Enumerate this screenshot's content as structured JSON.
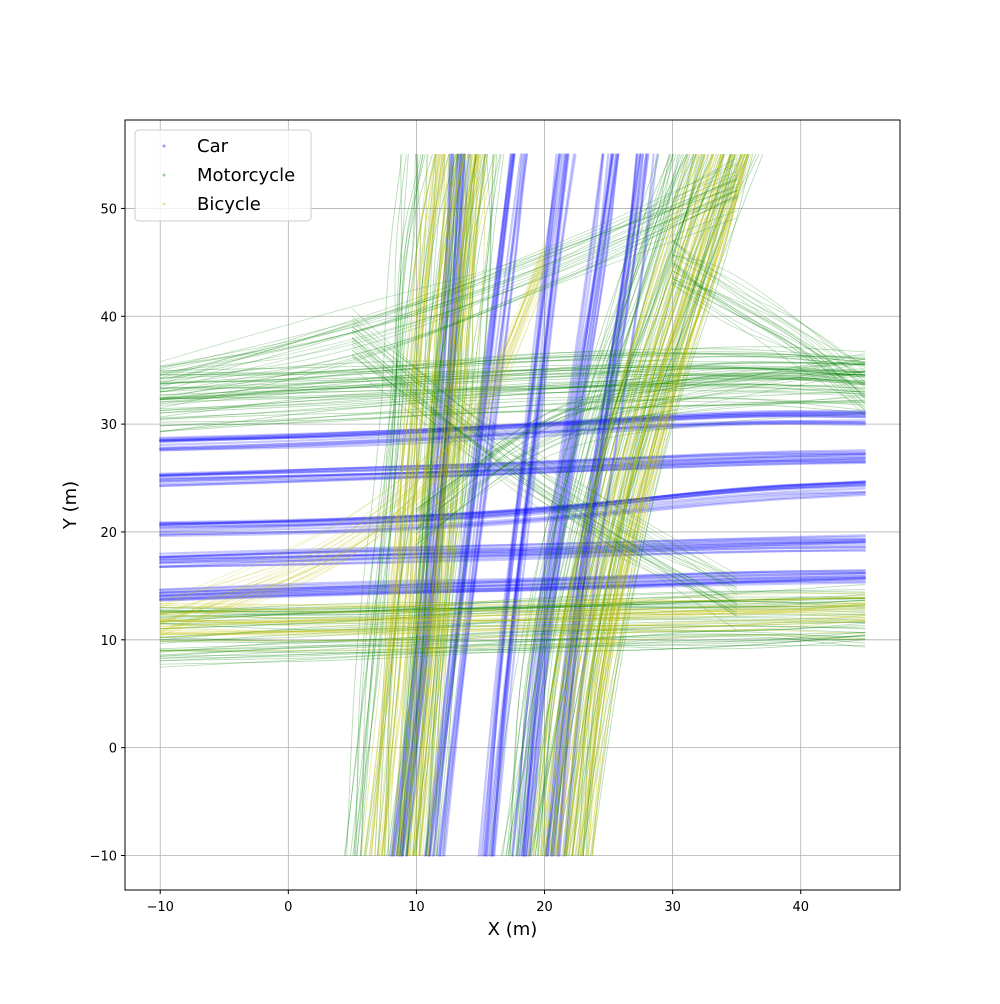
{
  "chart_data": {
    "type": "scatter",
    "title": "",
    "xlabel": "X (m)",
    "ylabel": "Y (m)",
    "xlim": [
      -12.75,
      47.75
    ],
    "ylim": [
      -13.2,
      58.2
    ],
    "xticks": [
      -10,
      0,
      10,
      20,
      30,
      40
    ],
    "yticks": [
      -10,
      0,
      10,
      20,
      30,
      40,
      50
    ],
    "x_tick_labels": [
      "−10",
      "0",
      "10",
      "20",
      "30",
      "40"
    ],
    "y_tick_labels": [
      "−10",
      "0",
      "10",
      "20",
      "30",
      "40",
      "50"
    ],
    "grid": true,
    "legend_position": "top-left",
    "series": [
      {
        "name": "Car",
        "color": "#0000ff",
        "lanes_vertical": [
          {
            "x": [
              8.5,
              10.5,
              12.0,
              12.8,
              13.2
            ],
            "y": [
              -10,
              10,
              30,
              45,
              55
            ]
          },
          {
            "x": [
              11.5,
              13.5,
              15.5,
              17.0,
              18.0
            ],
            "y": [
              -10,
              10,
              30,
              45,
              55
            ]
          },
          {
            "x": [
              15.5,
              17.0,
              19.0,
              20.5,
              21.5
            ],
            "y": [
              -10,
              10,
              30,
              45,
              55
            ]
          },
          {
            "x": [
              18.0,
              19.5,
              22.0,
              24.0,
              25.0
            ],
            "y": [
              -10,
              10,
              30,
              45,
              55
            ]
          },
          {
            "x": [
              21.0,
              22.5,
              25.0,
              27.0,
              28.0
            ],
            "y": [
              -10,
              10,
              30,
              45,
              55
            ]
          }
        ],
        "lanes_horizontal": [
          {
            "x": [
              -10,
              5,
              20,
              35,
              45
            ],
            "y": [
              28.0,
              28.5,
              29.5,
              30.5,
              30.5
            ]
          },
          {
            "x": [
              -10,
              5,
              20,
              35,
              45
            ],
            "y": [
              25.0,
              25.5,
              26.0,
              26.8,
              27.0
            ]
          },
          {
            "x": [
              -10,
              5,
              20,
              35,
              45
            ],
            "y": [
              20.2,
              20.5,
              21.5,
              23.5,
              24.0
            ]
          },
          {
            "x": [
              -10,
              5,
              20,
              35,
              45
            ],
            "y": [
              17.3,
              17.8,
              18.2,
              18.8,
              19.0
            ]
          },
          {
            "x": [
              -10,
              5,
              20,
              35,
              45
            ],
            "y": [
              14.2,
              14.8,
              15.2,
              15.8,
              16.0
            ]
          }
        ]
      },
      {
        "name": "Motorcycle",
        "color": "#008000",
        "lanes_vertical": [
          {
            "x": [
              8.0,
              9.5,
              11.0,
              12.0,
              13.0
            ],
            "y": [
              -10,
              10,
              30,
              45,
              55
            ]
          },
          {
            "x": [
              20.0,
              22.0,
              26.0,
              30.0,
              33.0
            ],
            "y": [
              -10,
              10,
              30,
              45,
              55
            ]
          }
        ],
        "lanes_horizontal": [
          {
            "x": [
              -10,
              5,
              20,
              35,
              45
            ],
            "y": [
              32.0,
              33.0,
              34.0,
              34.5,
              34.0
            ]
          },
          {
            "x": [
              -10,
              5,
              20,
              35,
              45
            ],
            "y": [
              10.5,
              11.0,
              11.5,
              12.0,
              12.0
            ]
          }
        ]
      },
      {
        "name": "Bicycle",
        "color": "#bfbf00",
        "lanes_vertical": [
          {
            "x": [
              8.5,
              10.0,
              11.5,
              12.5,
              13.5
            ],
            "y": [
              -10,
              10,
              30,
              45,
              55
            ]
          },
          {
            "x": [
              21.0,
              23.0,
              27.0,
              31.0,
              33.5
            ],
            "y": [
              -10,
              10,
              30,
              45,
              55
            ]
          }
        ],
        "lanes_horizontal": [
          {
            "x": [
              -10,
              5,
              20,
              35,
              45
            ],
            "y": [
              11.0,
              11.2,
              11.5,
              12.0,
              12.5
            ]
          }
        ]
      }
    ]
  }
}
